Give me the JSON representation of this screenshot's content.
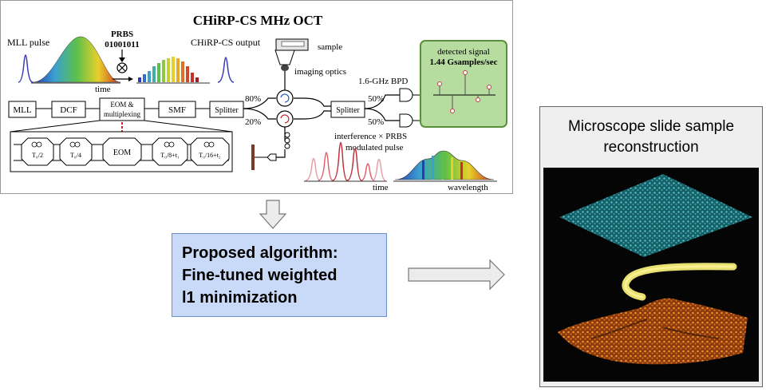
{
  "top_panel": {
    "title": "CHiRP-CS MHz OCT",
    "mll_pulse_label": "MLL pulse",
    "prbs_label": "PRBS",
    "prbs_bits": "01001011",
    "output_label": "CHiRP-CS output",
    "time_axis_label": "time",
    "sample_label": "sample",
    "imaging_optics_label": "imaging optics",
    "bpd_label": "1.6-GHz BPD",
    "detected_signal_label": "detected signal",
    "detected_rate_label": "1.44 Gsamples/sec",
    "block_mll": "MLL",
    "block_dcf": "DCF",
    "block_eom_line1": "EOM &",
    "block_eom_line2": "multiplexing",
    "block_smf": "SMF",
    "block_splitter_1": "Splitter",
    "block_splitter_2": "Splitter",
    "pct_80": "80%",
    "pct_20": "20%",
    "pct_50_top": "50%",
    "pct_50_bottom": "50%",
    "mux_t1": "T₀/2",
    "mux_t2": "T₀/4",
    "mux_eom": "EOM",
    "mux_t3": "T₀/8+t₁",
    "mux_t4": "T₀/16+t₂",
    "interference_label": "interference × PRBS",
    "modulated_label": "modulated pulse",
    "time_axis_label_2": "time",
    "wavelength_label": "wavelength"
  },
  "algorithm": {
    "line1": "Proposed algorithm:",
    "line2": "Fine-tuned weighted",
    "line3": "l1 minimization"
  },
  "reconstruction": {
    "caption_line1": "Microscope slide sample",
    "caption_line2": "reconstruction"
  },
  "colors": {
    "algo_fill": "#c9daf8",
    "detected_box_fill": "#b7dca0",
    "detected_box_border": "#5a8f3c",
    "pulse_blue": "#3b3bb8",
    "interference_red": "#c0303a",
    "recon_cyan": "#3fbfc8",
    "recon_yellow": "#e8e070",
    "recon_orange": "#d8701c"
  }
}
